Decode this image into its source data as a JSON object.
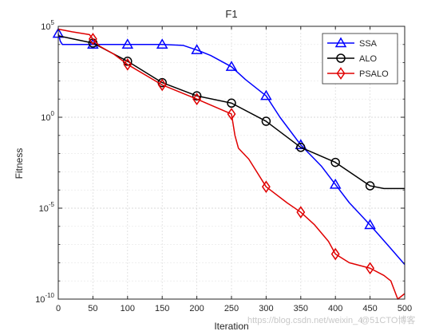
{
  "chart_data": {
    "type": "line",
    "title": "F1",
    "xlabel": "Iteration",
    "ylabel": "Fitness",
    "xlim": [
      0,
      500
    ],
    "ylim": [
      1e-10,
      100000
    ],
    "yscale": "log",
    "grid": true,
    "legend_position": "top-right",
    "x_ticks": [
      0,
      50,
      100,
      150,
      200,
      250,
      300,
      350,
      400,
      450,
      500
    ],
    "x_tick_labels": [
      "0",
      "50",
      "100",
      "150",
      "200",
      "250",
      "300",
      "350",
      "400",
      "450",
      "500"
    ],
    "y_ticks": [
      1e-10,
      1e-05,
      1,
      100000
    ],
    "y_tick_labels": [
      {
        "base": "10",
        "exp": "-10"
      },
      {
        "base": "10",
        "exp": "-5"
      },
      {
        "base": "10",
        "exp": "0"
      },
      {
        "base": "10",
        "exp": "5"
      }
    ],
    "series": [
      {
        "name": "SSA",
        "color": "#0000ff",
        "marker": "triangle",
        "x": [
          0,
          3,
          6,
          10,
          50,
          100,
          150,
          180,
          200,
          220,
          250,
          270,
          300,
          320,
          350,
          380,
          400,
          420,
          450,
          480,
          500
        ],
        "y": [
          40000,
          15000,
          10000,
          10000,
          10000,
          10000,
          10000,
          9000,
          5000,
          2500,
          600,
          120,
          15,
          1.0,
          0.03,
          0.002,
          0.0002,
          2e-05,
          1.2e-06,
          6e-08,
          8e-09
        ],
        "markers_x": [
          0,
          50,
          100,
          150,
          200,
          250,
          300,
          350,
          400,
          450
        ],
        "markers_y": [
          40000,
          10000,
          10000,
          10000,
          5000,
          600,
          15,
          0.03,
          0.0002,
          1.2e-06
        ]
      },
      {
        "name": "ALO",
        "color": "#000000",
        "marker": "circle",
        "x": [
          0,
          50,
          100,
          150,
          200,
          250,
          300,
          350,
          400,
          450,
          470,
          500
        ],
        "y": [
          30000,
          12000,
          1200,
          80,
          15,
          6,
          0.6,
          0.022,
          0.0033,
          0.00017,
          0.00012,
          0.00012
        ],
        "markers_x": [
          50,
          100,
          150,
          200,
          250,
          300,
          350,
          400,
          450
        ],
        "markers_y": [
          12000,
          1200,
          80,
          15,
          6,
          0.6,
          0.022,
          0.0033,
          0.00017
        ]
      },
      {
        "name": "PSALO",
        "color": "#e00000",
        "marker": "diamond",
        "x": [
          0,
          20,
          45,
          50,
          60,
          80,
          100,
          150,
          200,
          250,
          255,
          260,
          275,
          300,
          330,
          350,
          370,
          390,
          400,
          420,
          450,
          470,
          480,
          490,
          500
        ],
        "y": [
          70000,
          50000,
          35000,
          20000,
          8000,
          3000,
          800,
          60,
          10,
          1.5,
          0.1,
          0.02,
          0.005,
          0.00015,
          2e-05,
          6e-06,
          1.2e-06,
          1.5e-07,
          3e-08,
          1e-08,
          5e-09,
          2e-09,
          1e-09,
          1e-10,
          2e-10
        ],
        "markers_x": [
          50,
          100,
          150,
          200,
          250,
          300,
          350,
          400,
          450
        ],
        "markers_y": [
          20000,
          800,
          60,
          10,
          1.5,
          0.00015,
          6e-06,
          3e-08,
          5e-09
        ]
      }
    ]
  },
  "watermark": {
    "url": "https://blog.csdn.net/weixin_4",
    "brand": "@51CTO博客"
  }
}
